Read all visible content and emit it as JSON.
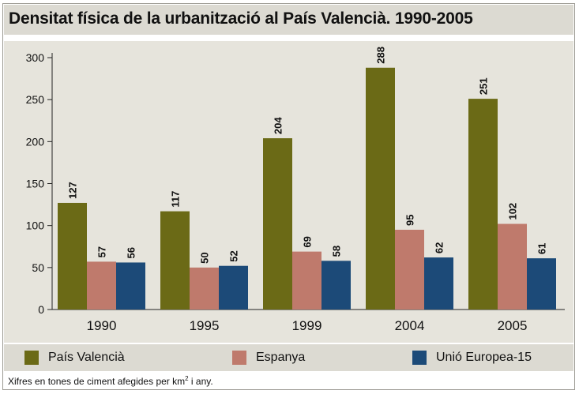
{
  "chart_data": {
    "type": "bar",
    "title": "Densitat física de la urbanització al País Valencià. 1990-2005",
    "categories": [
      "1990",
      "1995",
      "1999",
      "2004",
      "2005"
    ],
    "series": [
      {
        "name": "País Valencià",
        "values": [
          127,
          117,
          204,
          288,
          251
        ],
        "color": "#6b6a16"
      },
      {
        "name": "Espanya",
        "values": [
          57,
          50,
          69,
          95,
          102
        ],
        "color": "#bf7a6c"
      },
      {
        "name": "Unió Europea-15",
        "values": [
          56,
          52,
          58,
          62,
          61
        ],
        "color": "#1c4a78"
      }
    ],
    "yticks": [
      "0",
      "50",
      "100",
      "150",
      "200",
      "250",
      "300"
    ],
    "ylim": [
      0,
      300
    ],
    "grid": false,
    "legend_position": "bottom",
    "footnote": {
      "prefix": "Xifres en tones de ciment afegides per km",
      "superscript": "2",
      "suffix": " i any."
    }
  }
}
